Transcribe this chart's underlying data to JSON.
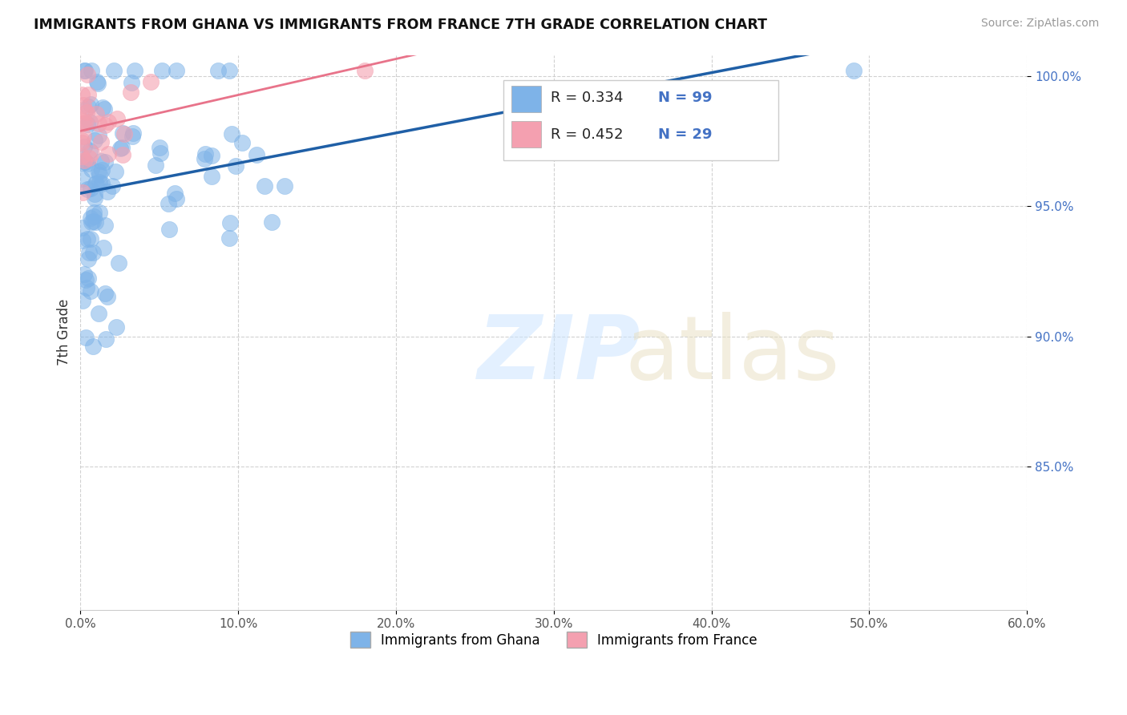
{
  "title": "IMMIGRANTS FROM GHANA VS IMMIGRANTS FROM FRANCE 7TH GRADE CORRELATION CHART",
  "source": "Source: ZipAtlas.com",
  "ylabel": "7th Grade",
  "legend_label_ghana": "Immigrants from Ghana",
  "legend_label_france": "Immigrants from France",
  "R_ghana": 0.334,
  "N_ghana": 99,
  "R_france": 0.452,
  "N_france": 29,
  "xlim": [
    0.0,
    0.6
  ],
  "ylim": [
    0.795,
    1.008
  ],
  "xtick_labels": [
    "0.0%",
    "10.0%",
    "20.0%",
    "30.0%",
    "40.0%",
    "50.0%",
    "60.0%"
  ],
  "xtick_values": [
    0.0,
    0.1,
    0.2,
    0.3,
    0.4,
    0.5,
    0.6
  ],
  "ytick_labels": [
    "85.0%",
    "90.0%",
    "95.0%",
    "100.0%"
  ],
  "ytick_values": [
    0.85,
    0.9,
    0.95,
    1.0
  ],
  "color_ghana": "#7EB3E8",
  "color_france": "#F4A0B0",
  "color_ghana_line": "#1F5FA6",
  "color_france_line": "#E8738A",
  "background_color": "#ffffff"
}
